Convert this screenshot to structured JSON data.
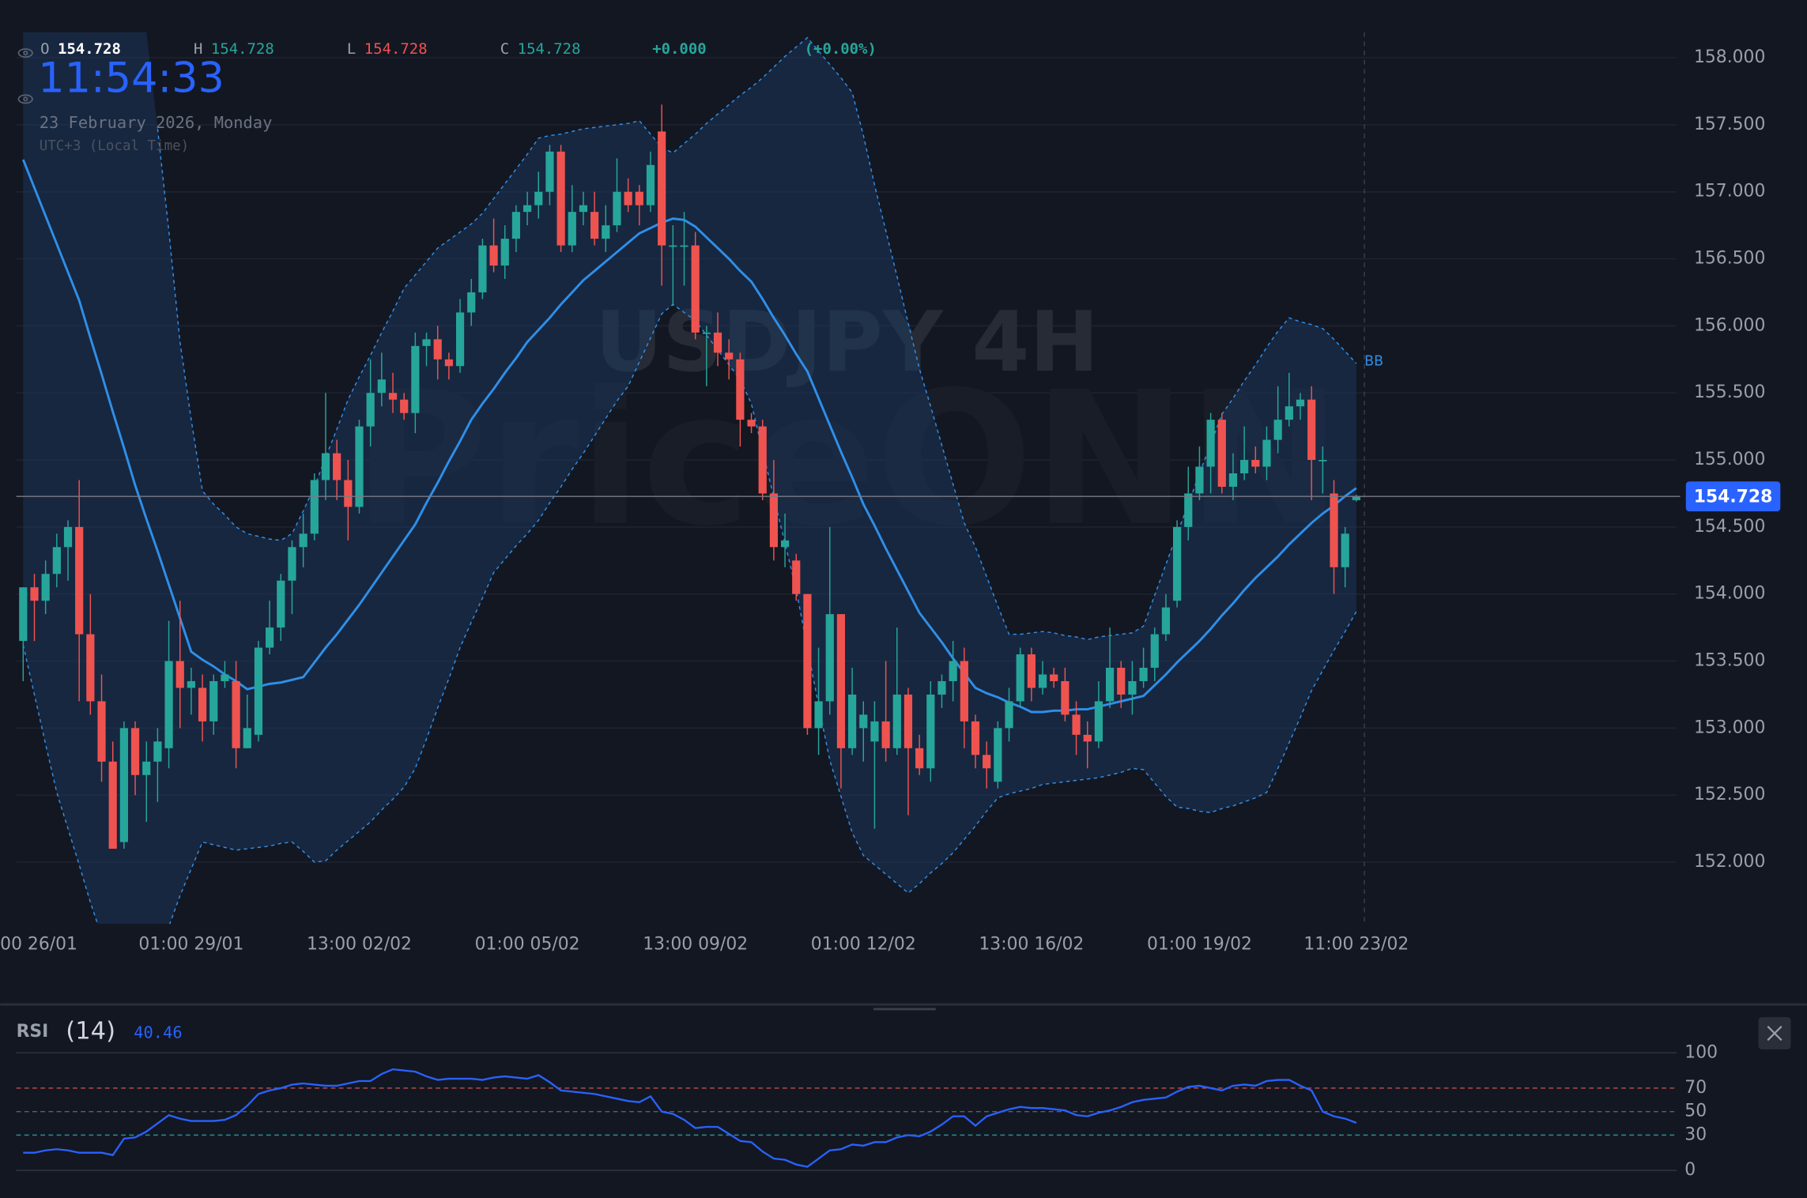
{
  "header": {
    "open_label": "O",
    "open": 154.728,
    "high_label": "H",
    "high": 154.728,
    "low_label": "L",
    "low": 154.728,
    "close_label": "C",
    "close": 154.728,
    "change": "+0.000",
    "change_percent": "(+0.00%)",
    "clock": "11:54:33",
    "date": "23 February 2026, Monday",
    "timezone": "UTC+3 (Local Time)"
  },
  "chart_data": [
    {
      "type": "candlestick",
      "watermark_symbol": "USDJPY 4H",
      "watermark_brand": "PriceONN",
      "categories": [
        "00 26/01",
        null,
        null,
        null,
        null,
        null,
        null,
        null,
        null,
        null,
        null,
        null,
        null,
        null,
        null,
        "01:00 29/01",
        null,
        null,
        null,
        null,
        null,
        null,
        null,
        null,
        null,
        null,
        null,
        null,
        null,
        null,
        "13:00 02/02",
        null,
        null,
        null,
        null,
        null,
        null,
        null,
        null,
        null,
        null,
        null,
        null,
        null,
        null,
        "01:00 05/02",
        null,
        null,
        null,
        null,
        null,
        null,
        null,
        null,
        null,
        null,
        null,
        null,
        null,
        null,
        "13:00 09/02",
        null,
        null,
        null,
        null,
        null,
        null,
        null,
        null,
        null,
        null,
        null,
        null,
        null,
        null,
        "01:00 12/02",
        null,
        null,
        null,
        null,
        null,
        null,
        null,
        null,
        null,
        null,
        null,
        null,
        null,
        null,
        "13:00 16/02",
        null,
        null,
        null,
        null,
        null,
        null,
        null,
        null,
        null,
        null,
        null,
        null,
        null,
        null,
        "01:00 19/02",
        null,
        null,
        null,
        null,
        null,
        null,
        null,
        null,
        null,
        null,
        null,
        null,
        null,
        "11:00 23/02"
      ],
      "open": [
        153.65,
        154.05,
        153.95,
        154.15,
        154.35,
        154.5,
        153.7,
        153.2,
        152.75,
        152.15,
        153.0,
        152.65,
        152.75,
        152.85,
        153.5,
        153.3,
        153.3,
        153.05,
        153.35,
        153.35,
        152.85,
        152.95,
        153.6,
        153.75,
        154.1,
        154.35,
        154.45,
        154.85,
        155.05,
        154.85,
        154.65,
        155.25,
        155.5,
        155.5,
        155.45,
        155.35,
        155.85,
        155.9,
        155.75,
        155.7,
        156.1,
        156.25,
        156.6,
        156.45,
        156.65,
        156.85,
        156.9,
        157.0,
        157.3,
        156.6,
        156.85,
        156.85,
        156.65,
        156.75,
        157.0,
        157.0,
        156.9,
        157.45,
        156.6,
        156.6,
        156.6,
        155.95,
        155.95,
        155.8,
        155.75,
        155.3,
        155.25,
        154.75,
        154.35,
        154.25,
        154.0,
        153.0,
        153.2,
        153.85,
        152.85,
        153.0,
        152.9,
        153.05,
        152.85,
        153.25,
        152.85,
        152.7,
        153.25,
        153.35,
        153.5,
        153.05,
        152.8,
        152.6,
        153.0,
        153.2,
        153.55,
        153.3,
        153.4,
        153.35,
        153.1,
        152.95,
        152.9,
        153.2,
        153.45,
        153.25,
        153.35,
        153.45,
        153.7,
        153.95,
        154.5,
        154.75,
        154.95,
        155.3,
        154.8,
        154.9,
        155.0,
        154.95,
        155.15,
        155.3,
        155.4,
        155.45,
        155.0,
        154.75,
        154.2,
        154.7
      ],
      "high": [
        154.05,
        154.15,
        154.25,
        154.45,
        154.55,
        154.85,
        154.0,
        153.4,
        152.9,
        153.05,
        153.05,
        152.9,
        153.0,
        153.8,
        153.95,
        153.45,
        153.4,
        153.4,
        153.5,
        153.5,
        153.25,
        153.65,
        153.95,
        154.15,
        154.4,
        154.6,
        154.9,
        155.5,
        155.15,
        155.0,
        155.3,
        155.75,
        155.8,
        155.65,
        155.5,
        155.95,
        155.95,
        156.0,
        155.8,
        156.2,
        156.35,
        156.65,
        156.8,
        156.75,
        156.9,
        157.0,
        157.15,
        157.35,
        157.35,
        157.05,
        157.0,
        157.0,
        156.9,
        157.25,
        157.1,
        157.05,
        157.3,
        157.65,
        156.75,
        156.85,
        156.7,
        156.0,
        156.1,
        155.9,
        155.8,
        155.35,
        155.3,
        155.0,
        154.6,
        154.3,
        154.0,
        153.6,
        154.5,
        153.85,
        153.45,
        153.2,
        153.2,
        153.5,
        153.75,
        153.3,
        152.95,
        153.35,
        153.4,
        153.65,
        153.6,
        153.1,
        152.9,
        153.05,
        153.3,
        153.6,
        153.6,
        153.5,
        153.45,
        153.45,
        153.2,
        153.05,
        153.35,
        153.75,
        153.5,
        153.5,
        153.6,
        153.75,
        154.0,
        154.55,
        154.95,
        155.1,
        155.35,
        155.35,
        155.05,
        155.25,
        155.1,
        155.25,
        155.55,
        155.65,
        155.5,
        155.55,
        155.1,
        154.85,
        154.5,
        154.74
      ],
      "low": [
        153.35,
        153.65,
        153.85,
        154.05,
        154.1,
        153.2,
        153.1,
        152.6,
        152.1,
        152.1,
        152.5,
        152.3,
        152.45,
        152.7,
        153.0,
        153.1,
        152.9,
        152.95,
        153.3,
        152.7,
        152.85,
        152.9,
        153.55,
        153.65,
        153.85,
        154.2,
        154.4,
        154.7,
        154.7,
        154.4,
        154.6,
        155.1,
        155.4,
        155.35,
        155.3,
        155.2,
        155.7,
        155.6,
        155.6,
        155.65,
        156.0,
        156.2,
        156.4,
        156.35,
        156.55,
        156.75,
        156.8,
        156.9,
        156.55,
        156.55,
        156.75,
        156.6,
        156.55,
        156.7,
        156.85,
        156.75,
        156.85,
        156.3,
        156.15,
        156.3,
        155.9,
        155.55,
        155.7,
        155.6,
        155.1,
        155.2,
        154.7,
        154.25,
        154.2,
        153.95,
        152.95,
        152.8,
        153.1,
        152.55,
        152.8,
        152.75,
        152.25,
        152.75,
        152.8,
        152.35,
        152.65,
        152.6,
        153.15,
        153.2,
        152.85,
        152.7,
        152.55,
        152.55,
        152.9,
        153.15,
        153.2,
        153.25,
        153.3,
        153.05,
        152.8,
        152.7,
        152.85,
        153.15,
        153.15,
        153.1,
        153.3,
        153.35,
        153.65,
        153.9,
        154.4,
        154.7,
        154.75,
        154.75,
        154.7,
        154.85,
        154.9,
        154.85,
        155.05,
        155.25,
        155.3,
        154.7,
        154.75,
        154.0,
        154.05,
        154.69
      ],
      "close": [
        154.05,
        153.95,
        154.15,
        154.35,
        154.5,
        153.7,
        153.2,
        152.75,
        152.1,
        153.0,
        152.65,
        152.75,
        152.9,
        153.5,
        153.3,
        153.35,
        153.05,
        153.35,
        153.4,
        152.85,
        153.0,
        153.6,
        153.75,
        154.1,
        154.35,
        154.45,
        154.85,
        155.05,
        154.85,
        154.65,
        155.25,
        155.5,
        155.6,
        155.45,
        155.35,
        155.85,
        155.9,
        155.75,
        155.7,
        156.1,
        156.25,
        156.6,
        156.45,
        156.65,
        156.85,
        156.9,
        157.0,
        157.3,
        156.6,
        156.85,
        156.9,
        156.65,
        156.75,
        157.0,
        156.9,
        156.9,
        157.2,
        156.6,
        156.6,
        156.6,
        155.95,
        155.95,
        155.8,
        155.75,
        155.3,
        155.25,
        154.75,
        154.35,
        154.4,
        154.0,
        153.0,
        153.2,
        153.85,
        152.85,
        153.25,
        153.1,
        153.05,
        152.85,
        153.25,
        152.85,
        152.7,
        153.25,
        153.35,
        153.5,
        153.05,
        152.8,
        152.7,
        153.0,
        153.2,
        153.55,
        153.3,
        153.4,
        153.35,
        153.1,
        152.95,
        152.9,
        153.2,
        153.45,
        153.25,
        153.35,
        153.45,
        153.7,
        153.9,
        154.5,
        154.75,
        154.95,
        155.3,
        154.8,
        154.9,
        155.0,
        154.95,
        155.15,
        155.3,
        155.4,
        155.45,
        155.0,
        155.0,
        154.2,
        154.45,
        154.728
      ],
      "up_color": "#26a69a",
      "down_color": "#ef5350",
      "bands": {
        "name": "BB",
        "color": "#2f8fe8",
        "upper": [
          null,
          null,
          null,
          null,
          null,
          null,
          null,
          null,
          null,
          null,
          null,
          null,
          157.47,
          156.71,
          155.88,
          155.3,
          154.77,
          154.67,
          154.59,
          154.5,
          154.45,
          154.43,
          154.41,
          154.4,
          154.45,
          154.62,
          154.8,
          155.02,
          155.23,
          155.45,
          155.62,
          155.78,
          155.95,
          156.11,
          156.28,
          156.38,
          156.48,
          156.58,
          156.64,
          156.7,
          156.76,
          156.84,
          156.95,
          157.06,
          157.17,
          157.28,
          157.4,
          157.42,
          157.43,
          157.45,
          157.47,
          157.48,
          157.49,
          157.5,
          157.51,
          157.53,
          157.43,
          157.33,
          157.29,
          157.36,
          157.43,
          157.51,
          157.58,
          157.65,
          157.72,
          157.78,
          157.85,
          157.93,
          158.01,
          158.08,
          158.15,
          158.05,
          157.95,
          157.85,
          157.74,
          157.42,
          157.05,
          156.71,
          156.37,
          156.02,
          155.68,
          155.4,
          155.11,
          154.82,
          154.53,
          154.35,
          154.13,
          153.91,
          153.7,
          153.7,
          153.71,
          153.72,
          153.71,
          153.69,
          153.68,
          153.66,
          153.68,
          153.69,
          153.7,
          153.71,
          153.76,
          153.99,
          154.22,
          154.45,
          154.67,
          154.9,
          155.12,
          155.34,
          155.46,
          155.59,
          155.71,
          155.84,
          155.96,
          156.06,
          156.03,
          156.01,
          155.98,
          155.9,
          155.81,
          155.72
        ],
        "middle": [
          157.24,
          157.03,
          156.82,
          156.61,
          156.4,
          156.19,
          155.91,
          155.64,
          155.36,
          155.09,
          154.81,
          154.56,
          154.32,
          154.07,
          153.82,
          153.57,
          153.51,
          153.46,
          153.4,
          153.35,
          153.29,
          153.31,
          153.33,
          153.34,
          153.36,
          153.38,
          153.49,
          153.6,
          153.7,
          153.81,
          153.92,
          154.04,
          154.16,
          154.28,
          154.4,
          154.52,
          154.68,
          154.83,
          154.99,
          155.14,
          155.3,
          155.42,
          155.53,
          155.65,
          155.76,
          155.88,
          155.97,
          156.06,
          156.16,
          156.25,
          156.34,
          156.41,
          156.48,
          156.55,
          156.62,
          156.69,
          156.73,
          156.77,
          156.8,
          156.79,
          156.74,
          156.66,
          156.58,
          156.5,
          156.41,
          156.33,
          156.2,
          156.06,
          155.93,
          155.79,
          155.66,
          155.46,
          155.26,
          155.06,
          154.87,
          154.67,
          154.51,
          154.34,
          154.18,
          154.02,
          153.86,
          153.75,
          153.64,
          153.52,
          153.41,
          153.3,
          153.26,
          153.23,
          153.19,
          153.16,
          153.12,
          153.12,
          153.13,
          153.13,
          153.14,
          153.14,
          153.16,
          153.18,
          153.2,
          153.22,
          153.24,
          153.32,
          153.4,
          153.49,
          153.57,
          153.65,
          153.74,
          153.84,
          153.93,
          154.03,
          154.12,
          154.2,
          154.28,
          154.37,
          154.45,
          154.53,
          154.6,
          154.66,
          154.73,
          154.79
        ],
        "lower": [
          153.62,
          153.25,
          152.88,
          152.52,
          152.25,
          151.98,
          151.7,
          151.45,
          151.3,
          151.25,
          151.25,
          151.3,
          151.4,
          151.52,
          151.75,
          151.95,
          152.15,
          152.13,
          152.11,
          152.09,
          152.1,
          152.11,
          152.12,
          152.14,
          152.15,
          152.08,
          152.0,
          152.01,
          152.09,
          152.16,
          152.23,
          152.3,
          152.39,
          152.47,
          152.56,
          152.7,
          152.92,
          153.15,
          153.37,
          153.6,
          153.79,
          153.97,
          154.16,
          154.26,
          154.36,
          154.45,
          154.55,
          154.68,
          154.8,
          154.93,
          155.05,
          155.18,
          155.31,
          155.44,
          155.55,
          155.73,
          155.91,
          156.09,
          156.16,
          156.1,
          156.04,
          155.93,
          155.82,
          155.71,
          155.6,
          155.42,
          155.07,
          154.72,
          154.38,
          154.03,
          153.6,
          153.17,
          152.76,
          152.49,
          152.22,
          152.05,
          151.98,
          151.91,
          151.84,
          151.77,
          151.84,
          151.92,
          151.99,
          152.07,
          152.17,
          152.27,
          152.38,
          152.48,
          152.51,
          152.53,
          152.55,
          152.58,
          152.59,
          152.6,
          152.61,
          152.62,
          152.63,
          152.65,
          152.67,
          152.7,
          152.69,
          152.59,
          152.49,
          152.41,
          152.4,
          152.38,
          152.37,
          152.4,
          152.42,
          152.45,
          152.48,
          152.52,
          152.7,
          152.89,
          153.08,
          153.28,
          153.43,
          153.58,
          153.72,
          153.87
        ]
      },
      "last_price": 154.728,
      "last_price_color": "#2962ff",
      "ylim": [
        151.54,
        158.19
      ],
      "yticks": [
        {
          "value": 152,
          "label": "152.000"
        },
        {
          "value": 152.5,
          "label": "152.500"
        },
        {
          "value": 153,
          "label": "153.000"
        },
        {
          "value": 153.5,
          "label": "153.500"
        },
        {
          "value": 154,
          "label": "154.000"
        },
        {
          "value": 154.5,
          "label": "154.500"
        },
        {
          "value": 155,
          "label": "155.000"
        },
        {
          "value": 155.5,
          "label": "155.500"
        },
        {
          "value": 156,
          "label": "156.000"
        },
        {
          "value": 156.5,
          "label": "156.500"
        },
        {
          "value": 157,
          "label": "157.000"
        },
        {
          "value": 157.5,
          "label": "157.500"
        },
        {
          "value": 158,
          "label": "158.000"
        }
      ],
      "grid": true
    },
    {
      "type": "line",
      "title": "RSI",
      "subtitle": "(14)",
      "color": "#2962ff",
      "values": [
        15,
        15,
        17,
        18,
        17,
        15,
        15,
        15,
        13,
        27,
        28,
        33,
        40,
        47,
        44,
        42,
        42,
        42,
        43,
        47,
        55,
        65,
        68,
        70,
        73,
        74,
        73,
        72,
        72,
        74,
        76,
        76,
        82,
        86,
        85,
        84,
        80,
        77,
        78,
        78,
        78,
        77,
        79,
        80,
        79,
        78,
        81,
        75,
        68,
        67,
        66,
        65,
        63,
        61,
        59,
        58,
        63,
        50,
        48,
        43,
        36,
        37,
        37,
        31,
        25,
        24,
        16,
        10,
        9,
        5,
        3,
        10,
        17,
        18,
        22,
        21,
        24,
        24,
        28,
        30,
        29,
        33,
        39,
        46,
        46,
        38,
        46,
        49,
        52,
        54,
        53,
        53,
        52,
        51,
        47,
        46,
        49,
        51,
        54,
        58,
        60,
        61,
        62,
        67,
        71,
        72,
        70,
        68,
        72,
        73,
        72,
        76,
        77,
        77,
        72,
        68,
        50,
        46,
        44,
        40.46
      ],
      "ylim": [
        0,
        100
      ],
      "yticks": [
        0,
        30,
        50,
        70,
        100
      ],
      "tick_line_colors": [
        "#2f3542",
        "#2a8f8f",
        "#5a6070",
        "#c0504d",
        "#2f3542"
      ],
      "tick_line_dashed": [
        false,
        true,
        true,
        true,
        false
      ]
    }
  ]
}
